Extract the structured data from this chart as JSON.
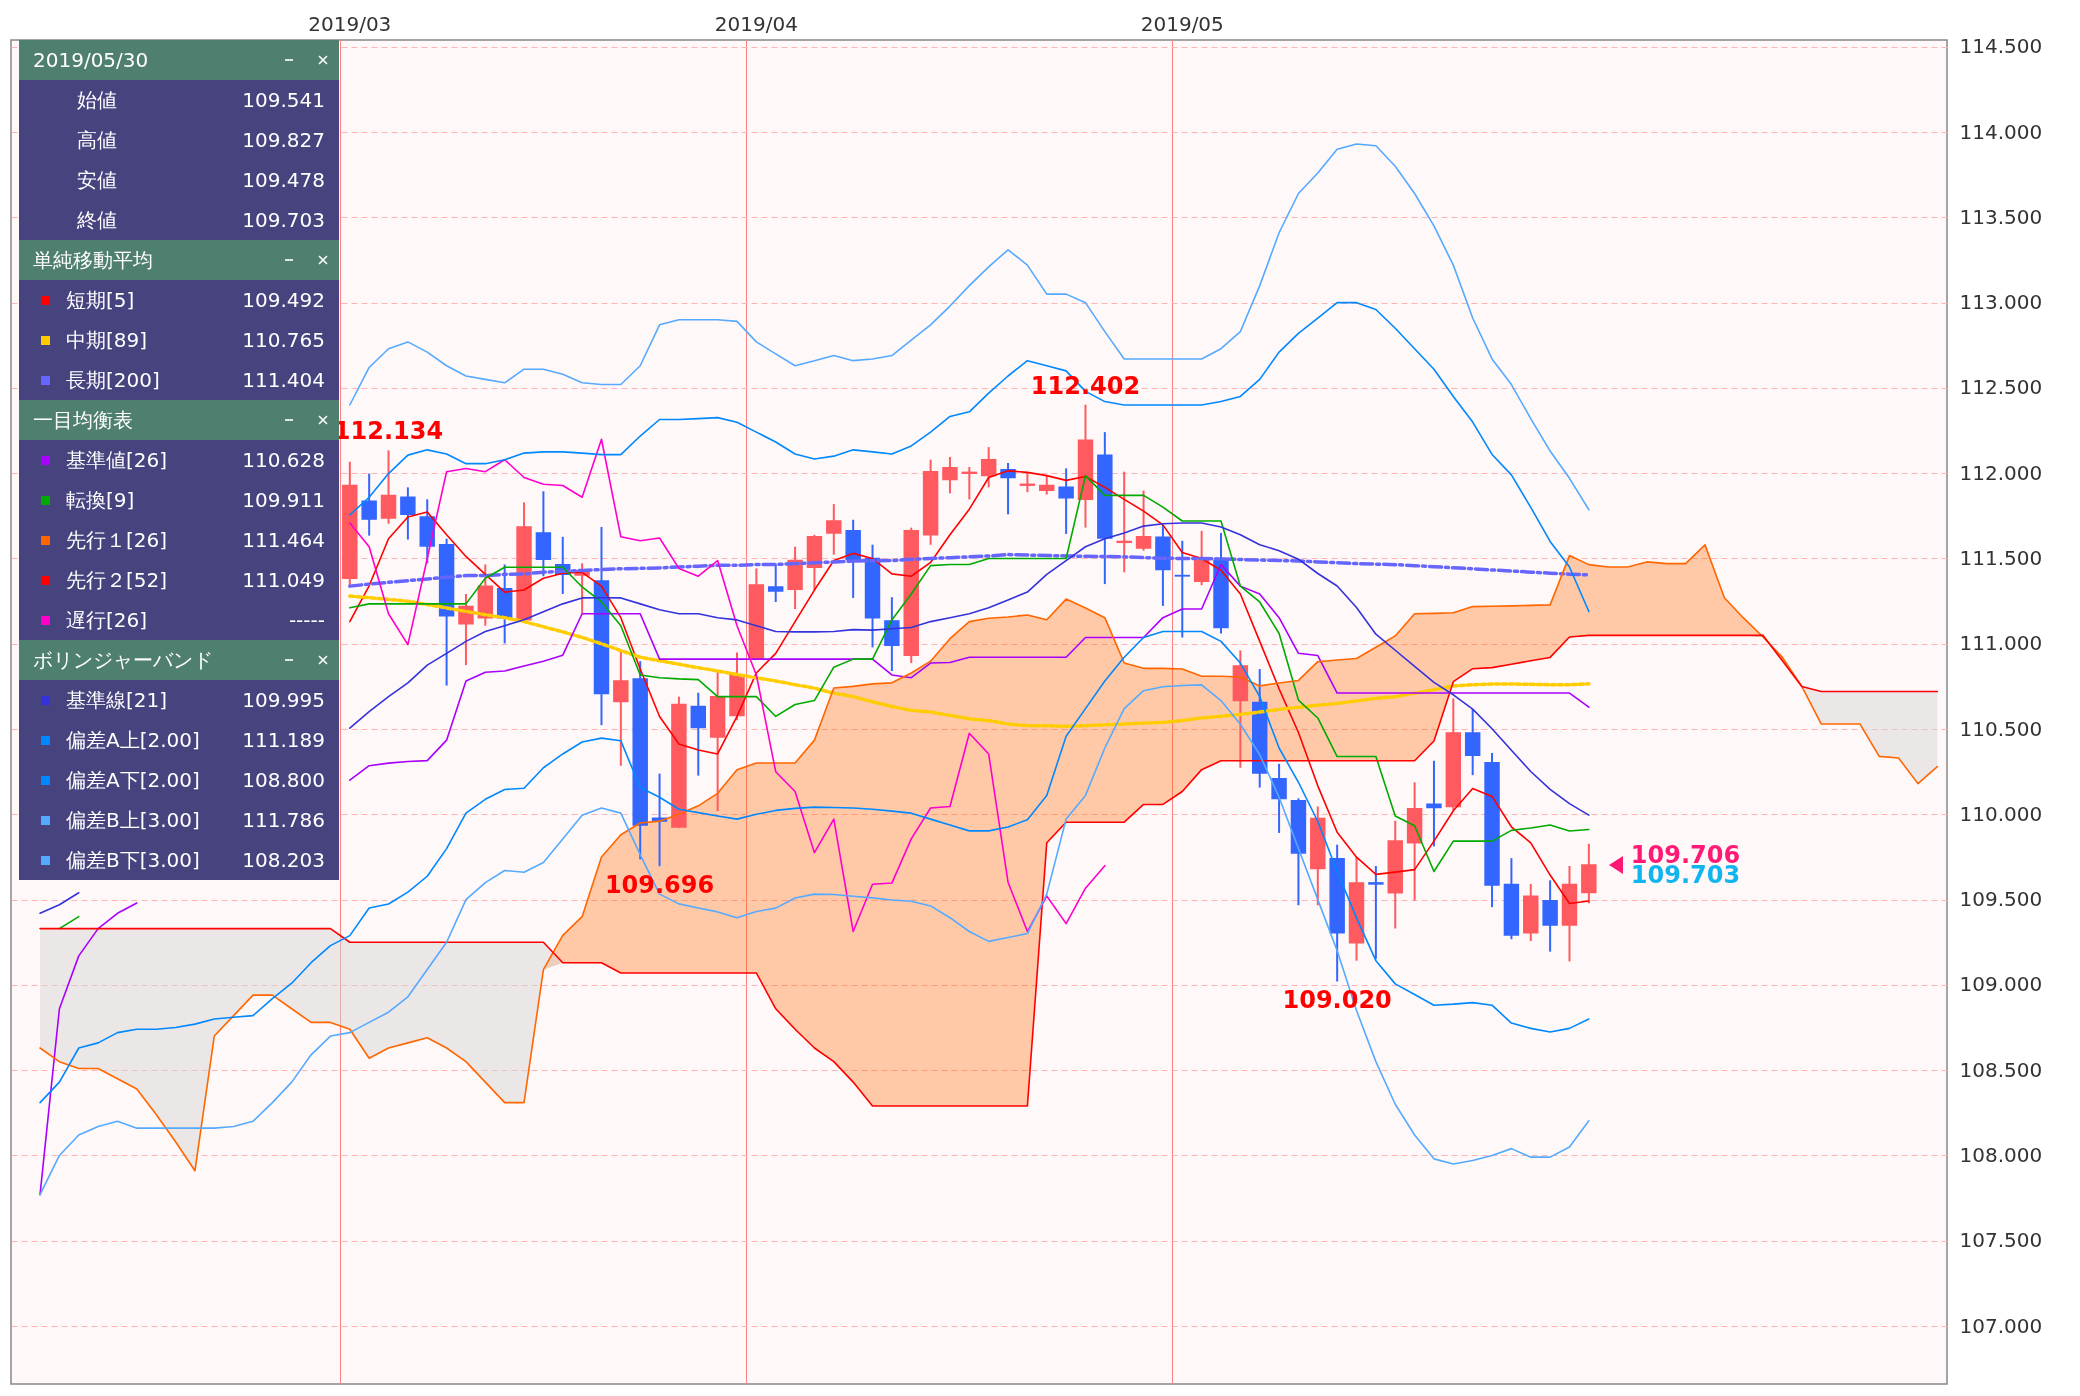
{
  "chart_data": {
    "type": "candlestick",
    "legend": "top left",
    "grid": true,
    "categories": [
      null,
      null,
      null,
      null,
      null,
      null,
      null,
      null,
      null,
      null,
      null,
      null,
      null,
      null,
      null,
      null,
      null,
      "2019/03",
      null,
      null,
      null,
      null,
      null,
      null,
      null,
      null,
      null,
      null,
      null,
      null,
      null,
      null,
      null,
      null,
      null,
      null,
      null,
      null,
      "2019/04",
      null,
      null,
      null,
      null,
      null,
      null,
      null,
      null,
      null,
      null,
      null,
      null,
      null,
      null,
      null,
      null,
      null,
      null,
      null,
      null,
      null,
      "2019/05",
      null,
      null,
      null,
      null,
      null,
      null,
      null,
      null,
      null,
      null,
      null,
      null,
      null,
      null,
      null,
      null,
      null,
      null,
      null,
      null,
      null,
      null,
      null,
      null,
      null,
      null,
      null,
      null,
      null,
      null,
      null,
      null,
      null,
      null,
      null,
      null,
      null,
      null,
      null
    ],
    "ylim": [
      106.66,
      114.54
    ],
    "yticks": [
      {
        "value": 107,
        "label": "107.000"
      },
      {
        "value": 107.5,
        "label": "107.500"
      },
      {
        "value": 108,
        "label": "108.000"
      },
      {
        "value": 108.5,
        "label": "108.500"
      },
      {
        "value": 109,
        "label": "109.000"
      },
      {
        "value": 109.5,
        "label": "109.500"
      },
      {
        "value": 110,
        "label": "110.000"
      },
      {
        "value": 110.5,
        "label": "110.500"
      },
      {
        "value": 111,
        "label": "111.000"
      },
      {
        "value": 111.5,
        "label": "111.500"
      },
      {
        "value": 112,
        "label": "112.000"
      },
      {
        "value": 112.5,
        "label": "112.500"
      },
      {
        "value": 113,
        "label": "113.000"
      },
      {
        "value": 113.5,
        "label": "113.500"
      },
      {
        "value": 114,
        "label": "114.000"
      },
      {
        "value": 114.5,
        "label": "114.500"
      }
    ],
    "ohlc": [
      null,
      null,
      null,
      null,
      null,
      null,
      null,
      null,
      null,
      null,
      null,
      null,
      null,
      null,
      null,
      null,
      null,
      [
        111.384,
        112.067,
        111.338,
        111.928
      ],
      [
        111.836,
        111.998,
        111.634,
        111.731
      ],
      [
        111.738,
        112.134,
        111.704,
        111.87
      ],
      [
        111.859,
        111.917,
        111.611,
        111.759
      ],
      [
        111.743,
        111.847,
        111.472,
        111.574
      ],
      [
        111.581,
        111.616,
        110.755,
        111.164
      ],
      [
        111.118,
        111.292,
        110.875,
        111.218
      ],
      [
        111.153,
        111.465,
        111.106,
        111.338
      ],
      [
        111.322,
        111.465,
        111.002,
        111.153
      ],
      [
        111.141,
        111.829,
        111.13,
        111.685
      ],
      [
        111.65,
        111.894,
        111.396,
        111.495
      ],
      [
        111.463,
        111.627,
        111.292,
        111.407
      ],
      [
        111.403,
        111.472,
        111.176,
        111.426
      ],
      [
        111.368,
        111.685,
        110.523,
        110.708
      ],
      [
        110.662,
        110.963,
        110.285,
        110.782
      ],
      [
        110.794,
        110.898,
        109.736,
        109.938
      ],
      [
        109.977,
        110.239,
        109.696,
        109.961
      ],
      [
        109.926,
        110.69,
        109.92,
        110.644
      ],
      [
        110.632,
        110.713,
        110.227,
        110.509
      ],
      [
        110.454,
        110.833,
        110.019,
        110.69
      ],
      [
        110.579,
        110.949,
        110.551,
        110.817
      ],
      [
        110.91,
        111.442,
        110.905,
        111.345
      ],
      [
        111.333,
        111.465,
        111.245,
        111.31
      ],
      [
        111.319,
        111.569,
        111.204,
        111.488
      ],
      [
        111.449,
        111.639,
        111.315,
        111.627
      ],
      [
        111.65,
        111.819,
        111.523,
        111.72
      ],
      [
        111.662,
        111.727,
        111.269,
        111.495
      ],
      [
        111.5,
        111.581,
        110.979,
        111.153
      ],
      [
        111.134,
        111.273,
        110.84,
        110.991
      ],
      [
        110.933,
        111.681,
        110.887,
        111.662
      ],
      [
        111.639,
        112.079,
        111.581,
        112.009
      ],
      [
        111.963,
        112.095,
        111.882,
        112.032
      ],
      [
        112.0,
        112.037,
        111.847,
        112.005
      ],
      [
        111.986,
        112.153,
        111.917,
        112.079
      ],
      [
        112.021,
        112.06,
        111.759,
        111.975
      ],
      [
        111.93,
        112.005,
        111.889,
        111.935
      ],
      [
        111.9,
        111.986,
        111.875,
        111.928
      ],
      [
        111.917,
        112.028,
        111.644,
        111.856
      ],
      [
        111.847,
        112.402,
        111.681,
        112.194
      ],
      [
        112.106,
        112.241,
        111.35,
        111.62
      ],
      [
        111.595,
        112.009,
        111.419,
        111.6
      ],
      [
        111.562,
        111.898,
        111.546,
        111.627
      ],
      [
        111.625,
        111.697,
        111.222,
        111.435
      ],
      [
        111.4,
        111.604,
        111.037,
        111.398
      ],
      [
        111.366,
        111.662,
        111.343,
        111.495
      ],
      [
        111.488,
        111.65,
        111.06,
        111.095
      ],
      [
        110.667,
        110.961,
        110.273,
        110.87
      ],
      [
        110.655,
        110.852,
        110.157,
        110.243
      ],
      [
        110.208,
        110.296,
        109.891,
        110.093
      ],
      [
        110.079,
        110.094,
        109.467,
        109.774
      ],
      [
        109.682,
        110.046,
        109.467,
        109.975
      ],
      [
        109.739,
        109.822,
        109.02,
        109.305
      ],
      [
        109.247,
        109.749,
        109.142,
        109.598
      ],
      [
        109.598,
        109.697,
        109.153,
        109.592
      ],
      [
        109.54,
        109.962,
        109.331,
        109.843
      ],
      [
        109.833,
        110.188,
        109.494,
        110.033
      ],
      [
        110.059,
        110.314,
        109.812,
        110.04
      ],
      [
        110.046,
        110.68,
        110.025,
        110.477
      ],
      [
        110.477,
        110.617,
        110.23,
        110.347
      ],
      [
        110.303,
        110.36,
        109.456,
        109.586
      ],
      [
        109.588,
        109.743,
        109.268,
        109.293
      ],
      [
        109.305,
        109.592,
        109.257,
        109.519
      ],
      [
        109.494,
        109.613,
        109.195,
        109.351
      ],
      [
        109.351,
        109.697,
        109.138,
        109.588
      ],
      [
        109.541,
        109.827,
        109.478,
        109.703
      ],
      null,
      null,
      null,
      null,
      null,
      null,
      null,
      null,
      null,
      null,
      null,
      null,
      null,
      null,
      null,
      null,
      null,
      null
    ],
    "colors": [
      null,
      null,
      null,
      null,
      null,
      null,
      null,
      null,
      null,
      null,
      null,
      null,
      null,
      null,
      null,
      null,
      null,
      "#ff5a5f",
      "#3366ff",
      "#ff5a5f",
      "#3366ff",
      "#3366ff",
      "#3366ff",
      "#ff5a5f",
      "#ff5a5f",
      "#3366ff",
      "#ff5a5f",
      "#3366ff",
      "#3366ff",
      "#ff5a5f",
      "#3366ff",
      "#ff5a5f",
      "#3366ff",
      "#3366ff",
      "#ff5a5f",
      "#3366ff",
      "#ff5a5f",
      "#ff5a5f",
      "#ff5a5f",
      "#3366ff",
      "#ff5a5f",
      "#ff5a5f",
      "#ff5a5f",
      "#3366ff",
      "#3366ff",
      "#3366ff",
      "#ff5a5f",
      "#ff5a5f",
      "#ff5a5f",
      "#ff5a5f",
      "#ff5a5f",
      "#3366ff",
      "#ff5a5f",
      "#ff5a5f",
      "#3366ff",
      "#ff5a5f",
      "#3366ff",
      "#ff5a5f",
      "#ff5a5f",
      "#3366ff",
      "#3366ff",
      "#ff5a5f",
      "#3366ff",
      "#ff5a5f",
      "#3366ff",
      "#3366ff",
      "#3366ff",
      "#ff5a5f",
      "#3366ff",
      "#ff5a5f",
      "#3366ff",
      "#ff5a5f",
      "#ff5a5f",
      "#3366ff",
      "#ff5a5f",
      "#3366ff",
      "#3366ff",
      "#3366ff",
      "#ff5a5f",
      "#3366ff",
      "#ff5a5f",
      "#ff5a5f",
      null,
      null,
      null,
      null,
      null,
      null,
      null,
      null,
      null,
      null,
      null,
      null,
      null,
      null,
      null,
      null,
      null,
      null
    ],
    "series": [
      {
        "name": "短期[5]",
        "type": "line",
        "color": "#ff0000",
        "line_style": "solid",
        "values": [
          null,
          null,
          null,
          null,
          null,
          null,
          null,
          null,
          null,
          null,
          null,
          null,
          null,
          null,
          null,
          null,
          null,
          111.13,
          111.34,
          111.616,
          111.743,
          111.773,
          111.639,
          111.512,
          111.407,
          111.303,
          111.315,
          111.384,
          111.414,
          111.419,
          111.338,
          111.153,
          110.852,
          110.574,
          110.412,
          110.377,
          110.354,
          110.574,
          110.829,
          110.944,
          111.13,
          111.315,
          111.488,
          111.53,
          111.5,
          111.41,
          111.396,
          111.477,
          111.639,
          111.789,
          111.975,
          112.014,
          112.005,
          111.986,
          111.958,
          111.981,
          111.917,
          111.847,
          111.778,
          111.697,
          111.535,
          111.5,
          111.431,
          111.292,
          111.014,
          110.736,
          110.48,
          110.167,
          109.895,
          109.749,
          109.648,
          109.661,
          109.676,
          109.843,
          110.021,
          110.151,
          110.105,
          109.927,
          109.833,
          109.644,
          109.477,
          109.492,
          null,
          null,
          null,
          null,
          null,
          null,
          null,
          null,
          null,
          null,
          null,
          null,
          null,
          null,
          null,
          null,
          null,
          null
        ]
      },
      {
        "name": "中期[89]",
        "type": "line",
        "color": "#ffcc00",
        "line_style": "dotted",
        "values": [
          null,
          null,
          null,
          null,
          null,
          null,
          null,
          null,
          null,
          null,
          null,
          null,
          null,
          null,
          null,
          null,
          null,
          111.28,
          111.27,
          111.26,
          111.25,
          111.23,
          111.21,
          111.19,
          111.17,
          111.153,
          111.13,
          111.1,
          111.07,
          111.037,
          111.0,
          110.96,
          110.921,
          110.9,
          110.88,
          110.86,
          110.84,
          110.82,
          110.8,
          110.782,
          110.76,
          110.74,
          110.71,
          110.69,
          110.66,
          110.632,
          110.61,
          110.6,
          110.58,
          110.56,
          110.55,
          110.53,
          110.52,
          110.52,
          110.516,
          110.52,
          110.525,
          110.53,
          110.535,
          110.539,
          110.55,
          110.565,
          110.575,
          110.586,
          110.6,
          110.615,
          110.628,
          110.64,
          110.65,
          110.665,
          110.68,
          110.69,
          110.71,
          110.73,
          110.753,
          110.76,
          110.764,
          110.764,
          110.762,
          110.76,
          110.76,
          110.765,
          null,
          null,
          null,
          null,
          null,
          null,
          null,
          null,
          null,
          null,
          null,
          null,
          null,
          null,
          null,
          null,
          null,
          null
        ]
      },
      {
        "name": "長期[200]",
        "type": "line",
        "color": "#6666ff",
        "line_style": "dashed",
        "values": [
          null,
          null,
          null,
          null,
          null,
          null,
          null,
          null,
          null,
          null,
          null,
          null,
          null,
          null,
          null,
          null,
          null,
          111.338,
          111.35,
          111.36,
          111.37,
          111.38,
          111.39,
          111.4,
          111.4,
          111.407,
          111.41,
          111.42,
          111.425,
          111.43,
          111.435,
          111.44,
          111.442,
          111.445,
          111.45,
          111.455,
          111.46,
          111.46,
          111.465,
          111.465,
          111.47,
          111.475,
          111.48,
          111.485,
          111.487,
          111.488,
          111.495,
          111.5,
          111.505,
          111.51,
          111.515,
          111.523,
          111.52,
          111.518,
          111.515,
          111.513,
          111.512,
          111.51,
          111.505,
          111.502,
          111.5,
          111.5,
          111.497,
          111.494,
          111.491,
          111.488,
          111.486,
          111.48,
          111.475,
          111.47,
          111.467,
          111.464,
          111.458,
          111.452,
          111.446,
          111.44,
          111.433,
          111.427,
          111.42,
          111.414,
          111.408,
          111.404,
          null,
          null,
          null,
          null,
          null,
          null,
          null,
          null,
          null,
          null,
          null,
          null,
          null,
          null,
          null,
          null,
          null,
          null
        ]
      },
      {
        "name": "基準値[26]",
        "type": "line",
        "color": "#aa00ff",
        "line_style": "solid",
        "values": [
          null,
          107.77,
          108.86,
          109.17,
          109.33,
          109.42,
          109.48,
          null,
          null,
          null,
          null,
          null,
          null,
          null,
          null,
          null,
          null,
          110.2,
          110.285,
          110.3,
          110.31,
          110.315,
          110.435,
          110.782,
          110.833,
          110.84,
          110.87,
          110.898,
          110.933,
          111.176,
          111.176,
          111.176,
          111.176,
          110.91,
          110.91,
          110.91,
          110.91,
          110.91,
          110.91,
          110.91,
          110.91,
          110.91,
          110.91,
          110.91,
          110.91,
          110.817,
          110.801,
          110.887,
          110.89,
          110.921,
          110.921,
          110.921,
          110.921,
          110.921,
          110.921,
          111.037,
          111.037,
          111.037,
          111.037,
          111.153,
          111.204,
          111.204,
          111.465,
          111.338,
          111.292,
          111.153,
          110.944,
          110.931,
          110.711,
          110.711,
          110.711,
          110.711,
          110.711,
          110.711,
          110.711,
          110.711,
          110.711,
          110.711,
          110.711,
          110.711,
          110.711,
          110.628,
          null,
          null,
          null,
          null,
          null,
          null,
          null,
          null,
          null,
          null,
          null,
          null,
          null,
          null,
          null,
          null,
          null,
          null
        ]
      },
      {
        "name": "転換[9]",
        "type": "line",
        "color": "#00aa00",
        "line_style": "solid",
        "values": [
          null,
          null,
          109.33,
          109.4,
          null,
          null,
          null,
          null,
          null,
          null,
          null,
          null,
          null,
          null,
          null,
          null,
          null,
          111.211,
          111.234,
          111.234,
          111.234,
          111.234,
          111.234,
          111.234,
          111.384,
          111.449,
          111.449,
          111.449,
          111.449,
          111.333,
          111.245,
          111.106,
          110.817,
          110.801,
          110.794,
          110.79,
          110.69,
          110.69,
          110.69,
          110.574,
          110.644,
          110.667,
          110.863,
          110.91,
          110.91,
          111.14,
          111.292,
          111.458,
          111.465,
          111.465,
          111.5,
          111.5,
          111.5,
          111.5,
          111.5,
          111.986,
          111.87,
          111.87,
          111.87,
          111.801,
          111.72,
          111.72,
          111.72,
          111.338,
          111.245,
          111.06,
          110.67,
          110.565,
          110.339,
          110.339,
          110.339,
          109.99,
          109.933,
          109.665,
          109.843,
          109.843,
          109.843,
          109.906,
          109.92,
          109.937,
          109.902,
          109.911,
          null,
          null,
          null,
          null,
          null,
          null,
          null,
          null,
          null,
          null,
          null,
          null,
          null,
          null,
          null,
          null,
          null,
          null
        ]
      },
      {
        "name": "先行１[26]",
        "type": "line",
        "color": "#ff6600",
        "line_style": "solid",
        "values": [
          null,
          108.63,
          108.55,
          108.51,
          108.51,
          108.45,
          108.39,
          108.24,
          108.08,
          107.91,
          108.7,
          108.82,
          108.94,
          108.94,
          108.86,
          108.78,
          108.78,
          108.74,
          108.57,
          108.63,
          108.66,
          108.69,
          108.63,
          108.55,
          108.43,
          108.31,
          108.31,
          109.09,
          109.29,
          109.4,
          109.75,
          109.88,
          109.949,
          109.96,
          110.0,
          110.05,
          110.123,
          110.262,
          110.301,
          110.301,
          110.301,
          110.435,
          110.741,
          110.75,
          110.765,
          110.771,
          110.829,
          110.898,
          111.03,
          111.13,
          111.15,
          111.157,
          111.169,
          111.141,
          111.262,
          111.21,
          111.153,
          110.887,
          110.856,
          110.856,
          110.852,
          110.81,
          110.81,
          110.805,
          110.753,
          110.77,
          110.785,
          110.895,
          110.905,
          110.914,
          110.98,
          111.046,
          111.176,
          111.178,
          111.182,
          111.218,
          111.22,
          111.222,
          111.225,
          111.228,
          111.517,
          111.464,
          111.45,
          111.45,
          111.48,
          111.47,
          111.47,
          111.58,
          111.27,
          111.15,
          111.04,
          110.92,
          110.75,
          110.53,
          110.53,
          110.53,
          110.34,
          110.33,
          110.18,
          110.28
        ]
      },
      {
        "name": "先行２[52]",
        "type": "line",
        "color": "#ff0000",
        "line_style": "solid",
        "values": [
          null,
          109.33,
          109.33,
          109.33,
          109.33,
          109.33,
          109.33,
          109.33,
          109.33,
          109.33,
          109.33,
          109.33,
          109.33,
          109.33,
          109.33,
          109.33,
          109.33,
          109.25,
          109.25,
          109.25,
          109.25,
          109.25,
          109.25,
          109.25,
          109.25,
          109.25,
          109.25,
          109.25,
          109.13,
          109.13,
          109.13,
          109.07,
          109.07,
          109.07,
          109.07,
          109.07,
          109.07,
          109.07,
          109.07,
          108.86,
          108.74,
          108.63,
          108.55,
          108.43,
          108.29,
          108.29,
          108.29,
          108.29,
          108.29,
          108.29,
          108.29,
          108.29,
          108.29,
          109.833,
          109.954,
          109.954,
          109.954,
          109.954,
          110.058,
          110.058,
          110.134,
          110.262,
          110.314,
          110.314,
          110.314,
          110.314,
          110.314,
          110.314,
          110.314,
          110.314,
          110.314,
          110.314,
          110.314,
          110.43,
          110.778,
          110.854,
          110.86,
          110.88,
          110.9,
          110.92,
          111.04,
          111.049,
          111.049,
          111.049,
          111.049,
          111.049,
          111.049,
          111.049,
          111.049,
          111.049,
          111.049,
          110.9,
          110.75,
          110.72,
          110.72,
          110.72,
          110.72,
          110.72,
          110.72,
          110.72
        ]
      },
      {
        "name": "遅行[26]",
        "type": "line",
        "color": "#ff00cc",
        "line_style": "solid",
        "values": [
          null,
          null,
          null,
          null,
          null,
          null,
          null,
          null,
          null,
          null,
          null,
          null,
          null,
          null,
          null,
          null,
          null,
          111.708,
          111.569,
          111.176,
          110.995,
          111.5,
          112.009,
          112.028,
          112.009,
          112.079,
          111.975,
          111.935,
          111.928,
          111.859,
          112.199,
          111.627,
          111.604,
          111.62,
          111.442,
          111.396,
          111.488,
          111.106,
          110.817,
          110.25,
          110.134,
          109.775,
          109.972,
          109.313,
          109.59,
          109.597,
          109.856,
          110.037,
          110.046,
          110.475,
          110.354,
          109.602,
          109.313,
          109.521,
          109.359,
          109.567,
          109.699,
          null,
          null,
          null,
          null,
          null,
          null,
          null,
          null,
          null,
          null,
          null,
          null,
          null,
          null,
          null,
          null,
          null,
          null,
          null,
          null,
          null,
          null,
          null,
          null,
          null,
          null,
          null,
          null,
          null,
          null,
          null,
          null,
          null,
          null,
          null,
          null,
          null,
          null,
          null,
          null,
          null,
          null,
          null
        ]
      },
      {
        "name": "基準線[21]",
        "type": "line",
        "color": "#3333dd",
        "line_style": "solid",
        "values": [
          null,
          109.42,
          109.47,
          109.54,
          null,
          null,
          null,
          null,
          null,
          null,
          null,
          null,
          null,
          null,
          null,
          null,
          null,
          110.505,
          110.602,
          110.69,
          110.771,
          110.875,
          110.944,
          111.014,
          111.072,
          111.106,
          111.141,
          111.188,
          111.234,
          111.269,
          111.27,
          111.269,
          111.234,
          111.199,
          111.176,
          111.176,
          111.153,
          111.14,
          111.106,
          111.072,
          111.07,
          111.07,
          111.072,
          111.083,
          111.08,
          111.088,
          111.095,
          111.13,
          111.153,
          111.176,
          111.211,
          111.257,
          111.303,
          111.407,
          111.488,
          111.569,
          111.616,
          111.65,
          111.69,
          111.704,
          111.708,
          111.708,
          111.685,
          111.639,
          111.581,
          111.546,
          111.496,
          111.412,
          111.339,
          111.213,
          111.056,
          110.962,
          110.868,
          110.774,
          110.701,
          110.617,
          110.502,
          110.376,
          110.251,
          110.146,
          110.063,
          109.995,
          null,
          null,
          null,
          null,
          null,
          null,
          null,
          null,
          null,
          null,
          null,
          null,
          null,
          null,
          null,
          null,
          null,
          null
        ]
      },
      {
        "name": "偏差A上[2.00]",
        "type": "line",
        "color": "#0088ff",
        "line_style": "solid",
        "values": [
          null,
          null,
          null,
          null,
          null,
          null,
          null,
          null,
          null,
          null,
          null,
          null,
          null,
          null,
          null,
          null,
          null,
          111.755,
          111.859,
          111.998,
          112.106,
          112.137,
          112.113,
          112.056,
          112.056,
          112.079,
          112.118,
          112.125,
          112.125,
          112.118,
          112.109,
          112.109,
          112.218,
          112.315,
          112.315,
          112.32,
          112.326,
          112.299,
          112.241,
          112.183,
          112.113,
          112.083,
          112.1,
          112.137,
          112.125,
          112.113,
          112.16,
          112.241,
          112.333,
          112.36,
          112.47,
          112.57,
          112.66,
          112.63,
          112.6,
          112.48,
          112.42,
          112.4,
          112.4,
          112.4,
          112.4,
          112.4,
          112.42,
          112.45,
          112.55,
          112.71,
          112.82,
          112.91,
          113.0,
          113.0,
          112.96,
          112.85,
          112.73,
          112.61,
          112.45,
          112.3,
          112.11,
          111.99,
          111.8,
          111.6,
          111.45,
          111.189,
          null,
          null,
          null,
          null,
          null,
          null,
          null,
          null,
          null,
          null,
          null,
          null,
          null,
          null,
          null,
          null,
          null,
          null
        ]
      },
      {
        "name": "偏差A下[2.00]",
        "type": "line",
        "color": "#0088ff",
        "line_style": "solid",
        "values": [
          null,
          108.31,
          108.43,
          108.63,
          108.66,
          108.72,
          108.74,
          108.74,
          108.75,
          108.77,
          108.8,
          108.81,
          108.82,
          108.92,
          109.01,
          109.13,
          109.23,
          109.289,
          109.451,
          109.474,
          109.544,
          109.637,
          109.799,
          110.007,
          110.088,
          110.146,
          110.153,
          110.273,
          110.354,
          110.424,
          110.447,
          110.431,
          110.157,
          110.1,
          110.03,
          110.01,
          109.99,
          109.972,
          110.0,
          110.023,
          110.035,
          110.042,
          110.04,
          110.037,
          110.03,
          110.019,
          110.007,
          109.972,
          109.937,
          109.903,
          109.903,
          109.926,
          109.968,
          110.111,
          110.458,
          110.62,
          110.782,
          110.921,
          111.037,
          111.072,
          111.072,
          111.072,
          111.014,
          110.887,
          110.69,
          110.389,
          110.188,
          109.958,
          109.665,
          109.393,
          109.142,
          109.006,
          108.944,
          108.881,
          108.887,
          108.896,
          108.881,
          108.776,
          108.745,
          108.724,
          108.745,
          108.8,
          null,
          null,
          null,
          null,
          null,
          null,
          null,
          null,
          null,
          null,
          null,
          null,
          null,
          null,
          null,
          null,
          null,
          null
        ]
      },
      {
        "name": "偏差B上[3.00]",
        "type": "line",
        "color": "#55aaff",
        "line_style": "solid",
        "values": [
          null,
          null,
          null,
          null,
          null,
          null,
          null,
          null,
          null,
          null,
          null,
          null,
          null,
          null,
          null,
          null,
          null,
          112.4,
          112.62,
          112.73,
          112.77,
          112.71,
          112.63,
          112.57,
          112.55,
          112.53,
          112.61,
          112.61,
          112.58,
          112.53,
          112.52,
          112.52,
          112.63,
          112.87,
          112.9,
          112.9,
          112.9,
          112.89,
          112.77,
          112.7,
          112.63,
          112.66,
          112.69,
          112.66,
          112.67,
          112.69,
          112.78,
          112.87,
          112.98,
          113.1,
          113.21,
          113.31,
          113.22,
          113.05,
          113.05,
          113.0,
          112.83,
          112.67,
          112.67,
          112.67,
          112.67,
          112.67,
          112.73,
          112.83,
          113.1,
          113.41,
          113.64,
          113.76,
          113.9,
          113.93,
          113.92,
          113.8,
          113.64,
          113.45,
          113.22,
          112.91,
          112.67,
          112.52,
          112.32,
          112.13,
          111.97,
          111.786,
          null,
          null,
          null,
          null,
          null,
          null,
          null,
          null,
          null,
          null,
          null,
          null,
          null,
          null,
          null,
          null,
          null,
          null
        ]
      },
      {
        "name": "偏差B下[3.00]",
        "type": "line",
        "color": "#55aaff",
        "line_style": "solid",
        "values": [
          null,
          107.77,
          108.0,
          108.12,
          108.17,
          108.2,
          108.16,
          108.16,
          108.16,
          108.16,
          108.16,
          108.17,
          108.2,
          108.31,
          108.43,
          108.59,
          108.7,
          108.72,
          108.78,
          108.84,
          108.93,
          109.09,
          109.25,
          109.5,
          109.6,
          109.671,
          109.66,
          109.718,
          109.856,
          109.995,
          110.037,
          110.007,
          109.764,
          109.532,
          109.475,
          109.451,
          109.428,
          109.394,
          109.43,
          109.45,
          109.509,
          109.532,
          109.53,
          109.52,
          109.51,
          109.498,
          109.49,
          109.463,
          109.394,
          109.313,
          109.255,
          109.278,
          109.301,
          109.532,
          109.972,
          110.111,
          110.389,
          110.62,
          110.725,
          110.748,
          110.755,
          110.759,
          110.667,
          110.528,
          110.35,
          110.1,
          109.8,
          109.5,
          109.2,
          108.85,
          108.55,
          108.3,
          108.12,
          107.98,
          107.95,
          107.97,
          108.0,
          108.04,
          107.99,
          107.99,
          108.05,
          108.203,
          null,
          null,
          null,
          null,
          null,
          null,
          null,
          null,
          null,
          null,
          null,
          null,
          null,
          null,
          null,
          null,
          null,
          null
        ]
      }
    ],
    "annotations": [
      "2019/05/30",
      "始値",
      "109.541",
      "高値",
      "109.827",
      "安値",
      "109.478",
      "終値",
      "109.703",
      "単純移動平均",
      "109.492",
      "110.765",
      "111.404",
      "一目均衡表",
      "110.628",
      "109.911",
      "111.464",
      "111.049",
      "-----",
      "ボリンジャーバンド",
      "109.995",
      "111.189",
      "108.800",
      "111.786",
      "108.203",
      {
        "text": "112.134",
        "y": 112.134
      },
      {
        "text": "112.402",
        "y": 112.402
      },
      {
        "text": "109.696",
        "y": 109.696
      },
      {
        "text": "109.020",
        "y": 109.02
      },
      "109.706",
      "109.703"
    ]
  }
}
